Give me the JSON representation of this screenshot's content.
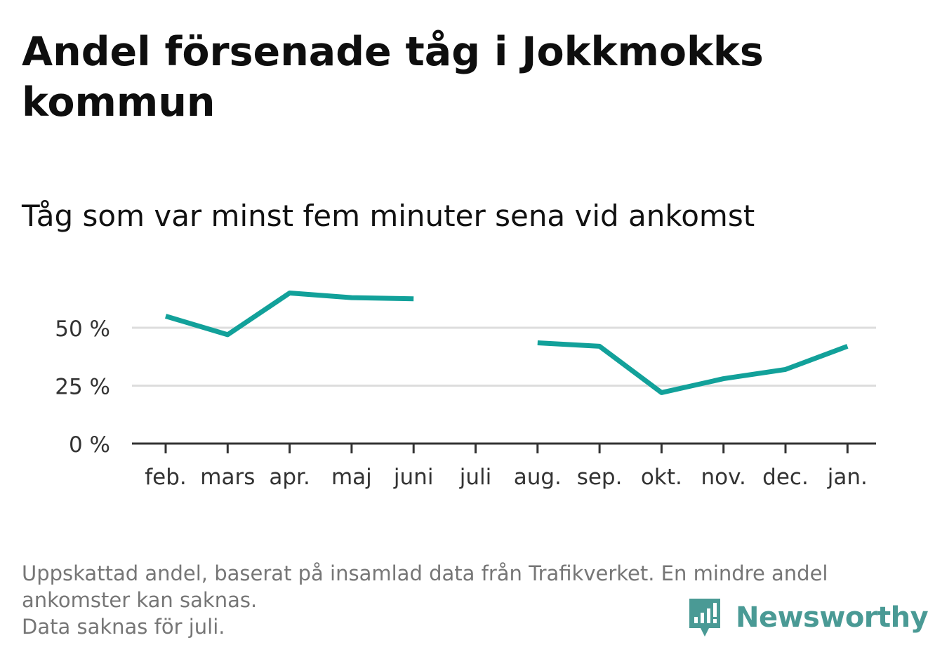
{
  "title": "Andel försenade tåg i Jokkmokks kommun",
  "subtitle": "Tåg som var minst fem minuter sena vid ankomst",
  "colors": {
    "line": "#12a19a",
    "grid": "#dddddd",
    "axis": "#333333",
    "logo": "#4a9a95"
  },
  "chart_data": {
    "type": "line",
    "categories": [
      "feb.",
      "mars",
      "apr.",
      "maj",
      "juni",
      "juli",
      "aug.",
      "sep.",
      "okt.",
      "nov.",
      "dec.",
      "jan."
    ],
    "series": [
      {
        "values": [
          55,
          47,
          65,
          63,
          62.5,
          null,
          43.5,
          42,
          22,
          28,
          32,
          42
        ]
      }
    ],
    "ylim": [
      0,
      70
    ],
    "yticks": [
      0,
      25,
      50
    ],
    "ytick_labels": [
      "0 %",
      "25 %",
      "50 %"
    ],
    "grid": true
  },
  "footnote": {
    "line1": "Uppskattad andel, baserat på insamlad data från Trafikverket. En mindre andel ankomster kan saknas.",
    "line2": "Data saknas för juli."
  },
  "logo": {
    "text": "Newsworthy",
    "icon": "newsworthy-chart-icon"
  }
}
